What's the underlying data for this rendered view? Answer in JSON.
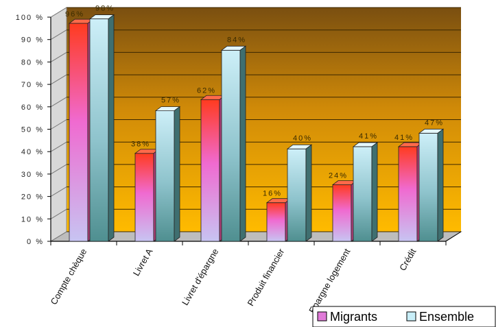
{
  "chart_data": {
    "type": "bar",
    "title": "",
    "xlabel": "",
    "ylabel": "",
    "categories": [
      "Compte chèque",
      "Livret A",
      "Livret d'épargne",
      "Produit financier",
      "Epargne logement",
      "Crédit"
    ],
    "series": [
      {
        "name": "Migrants",
        "values": [
          96,
          38,
          62,
          16,
          24,
          41
        ],
        "labels": [
          "96%",
          "38%",
          "62%",
          "16%",
          "24%",
          "41%"
        ]
      },
      {
        "name": "Ensemble",
        "values": [
          98,
          57,
          84,
          40,
          41,
          47
        ],
        "labels": [
          "98%",
          "57%",
          "84%",
          "40%",
          "41%",
          "47%"
        ]
      }
    ],
    "ylim": [
      0,
      100
    ],
    "yticks": [
      0,
      10,
      20,
      30,
      40,
      50,
      60,
      70,
      80,
      90,
      100
    ],
    "ytick_labels": [
      "0 %",
      "10 %",
      "20 %",
      "30 %",
      "40 %",
      "50 %",
      "60 %",
      "70 %",
      "80 %",
      "90 %",
      "100 %"
    ],
    "grid": true,
    "legend_position": "bottom-right",
    "colors": {
      "migrants_top": "#ff3b1f",
      "migrants_bottom": "#c9b8f0",
      "ensemble_top": "#c8eef8",
      "ensemble_bottom": "#4f8f90",
      "wall_top": "#7a4f10",
      "wall_bottom": "#ffb800",
      "floor": "#bdbdbd"
    }
  }
}
